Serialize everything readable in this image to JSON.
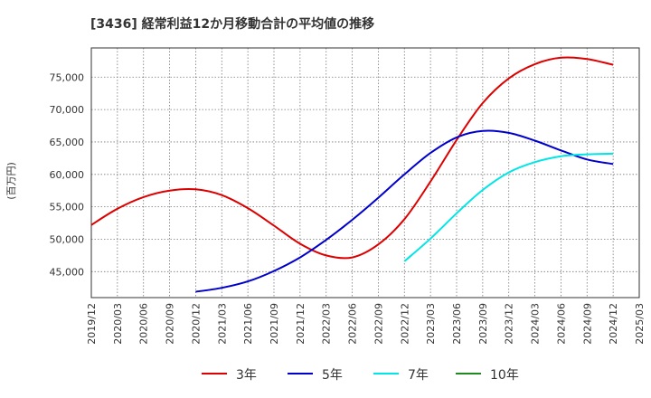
{
  "chart_data": {
    "type": "line",
    "title": "[3436]  経常利益12か月移動合計の平均値の推移",
    "ylabel": "(百万円)",
    "xlabel": "",
    "ylim": [
      41000,
      79500
    ],
    "yticks": [
      45000,
      50000,
      55000,
      60000,
      65000,
      70000,
      75000
    ],
    "ytick_labels": [
      "45,000",
      "50,000",
      "55,000",
      "60,000",
      "65,000",
      "70,000",
      "75,000"
    ],
    "x_ticks": [
      "2019/12",
      "2020/03",
      "2020/06",
      "2020/09",
      "2020/12",
      "2021/03",
      "2021/06",
      "2021/09",
      "2021/12",
      "2022/03",
      "2022/06",
      "2022/09",
      "2022/12",
      "2023/03",
      "2023/06",
      "2023/09",
      "2023/12",
      "2024/03",
      "2024/06",
      "2024/09",
      "2024/12",
      "2025/03"
    ],
    "grid": true,
    "legend_position": "bottom",
    "series": [
      {
        "name": "3年",
        "color": "#dd0000",
        "points": [
          [
            "2019/12",
            52200
          ],
          [
            "2020/03",
            54700
          ],
          [
            "2020/06",
            56500
          ],
          [
            "2020/09",
            57500
          ],
          [
            "2020/12",
            57700
          ],
          [
            "2021/03",
            56800
          ],
          [
            "2021/06",
            54800
          ],
          [
            "2021/09",
            52100
          ],
          [
            "2021/12",
            49300
          ],
          [
            "2022/03",
            47500
          ],
          [
            "2022/06",
            47200
          ],
          [
            "2022/09",
            49200
          ],
          [
            "2022/12",
            53100
          ],
          [
            "2023/03",
            58900
          ],
          [
            "2023/06",
            65300
          ],
          [
            "2023/09",
            71000
          ],
          [
            "2023/12",
            74800
          ],
          [
            "2024/03",
            77000
          ],
          [
            "2024/06",
            78000
          ],
          [
            "2024/09",
            77800
          ],
          [
            "2024/12",
            76900
          ]
        ]
      },
      {
        "name": "5年",
        "color": "#0000cc",
        "points": [
          [
            "2020/12",
            41900
          ],
          [
            "2021/03",
            42500
          ],
          [
            "2021/06",
            43500
          ],
          [
            "2021/09",
            45100
          ],
          [
            "2021/12",
            47200
          ],
          [
            "2022/03",
            49900
          ],
          [
            "2022/06",
            53000
          ],
          [
            "2022/09",
            56400
          ],
          [
            "2022/12",
            60000
          ],
          [
            "2023/03",
            63300
          ],
          [
            "2023/06",
            65700
          ],
          [
            "2023/09",
            66700
          ],
          [
            "2023/12",
            66400
          ],
          [
            "2024/03",
            65200
          ],
          [
            "2024/06",
            63700
          ],
          [
            "2024/09",
            62300
          ],
          [
            "2024/12",
            61600
          ]
        ]
      },
      {
        "name": "7年",
        "color": "#00e5e5",
        "points": [
          [
            "2022/12",
            46600
          ],
          [
            "2023/03",
            50100
          ],
          [
            "2023/06",
            54000
          ],
          [
            "2023/09",
            57600
          ],
          [
            "2023/12",
            60300
          ],
          [
            "2024/03",
            61900
          ],
          [
            "2024/06",
            62800
          ],
          [
            "2024/09",
            63100
          ],
          [
            "2024/12",
            63200
          ]
        ]
      },
      {
        "name": "10年",
        "color": "#228822",
        "points": []
      }
    ]
  }
}
